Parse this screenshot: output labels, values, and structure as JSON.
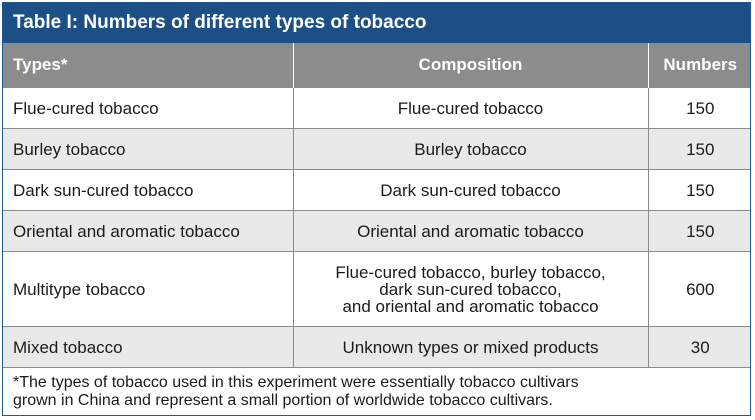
{
  "title": "Table I: Numbers of different types of tobacco",
  "headers": {
    "types": "Types*",
    "composition": "Composition",
    "numbers": "Numbers"
  },
  "rows": [
    {
      "type": "Flue-cured tobacco",
      "composition": "Flue-cured tobacco",
      "number": "150"
    },
    {
      "type": "Burley tobacco",
      "composition": "Burley tobacco",
      "number": "150"
    },
    {
      "type": "Dark sun-cured tobacco",
      "composition": "Dark sun-cured tobacco",
      "number": "150"
    },
    {
      "type": "Oriental and aromatic tobacco",
      "composition": "Oriental and aromatic tobacco",
      "number": "150"
    },
    {
      "type": "Multitype tobacco",
      "composition_lines": [
        "Flue-cured tobacco, burley tobacco,",
        "dark sun-cured tobacco,",
        "and oriental and aromatic tobacco"
      ],
      "number": "600"
    },
    {
      "type": "Mixed tobacco",
      "composition": "Unknown types or mixed products",
      "number": "30"
    }
  ],
  "footnote_lines": [
    "*The types of tobacco used in this experiment were essentially tobacco cultivars",
    "grown in China and represent a small portion of worldwide tobacco cultivars."
  ]
}
